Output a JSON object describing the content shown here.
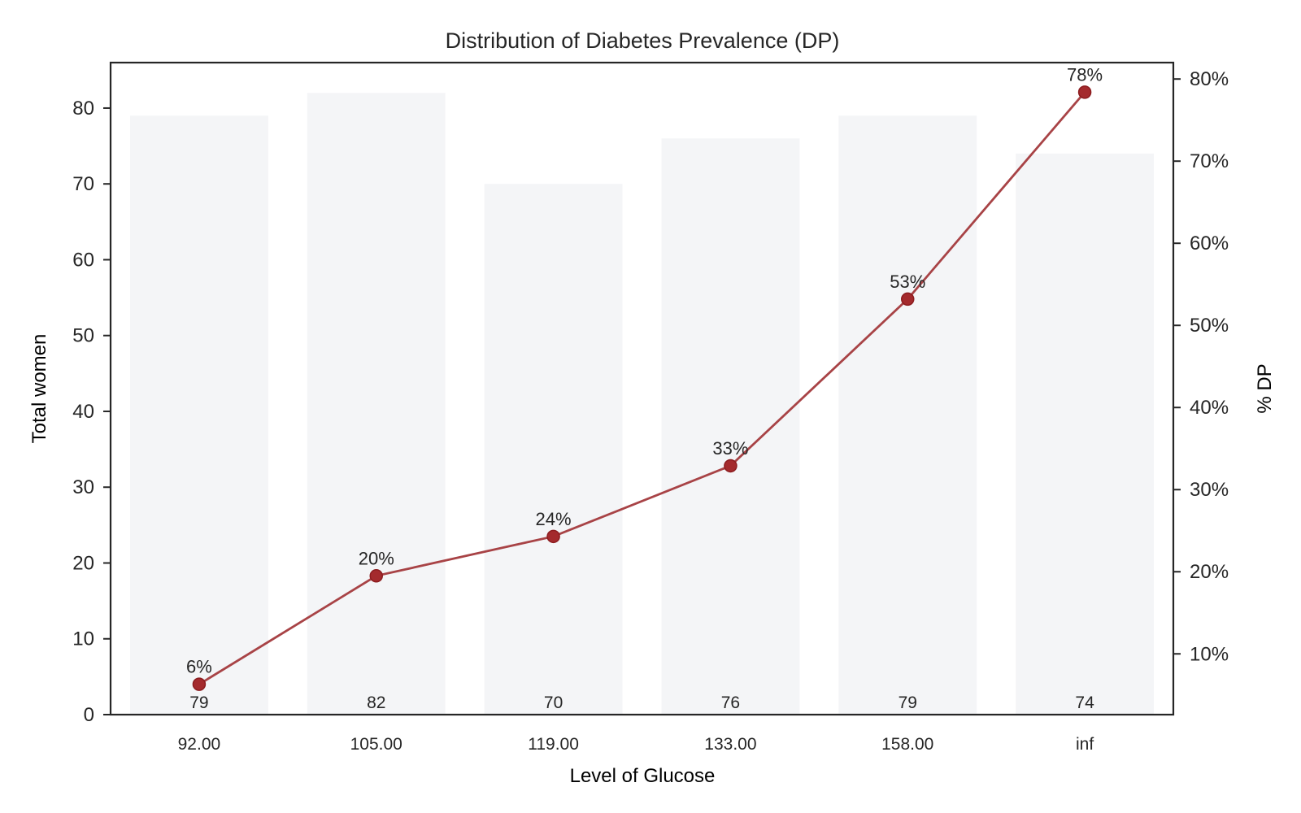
{
  "chart_data": {
    "type": "bar",
    "title": "Distribution of Diabetes Prevalence (DP)",
    "xlabel": "Level of Glucose",
    "ylabel": "Total women",
    "y2label": "% DP",
    "categories": [
      "92.00",
      "105.00",
      "119.00",
      "133.00",
      "158.00",
      "inf"
    ],
    "series": [
      {
        "type": "bar",
        "axis": "left",
        "values": [
          79,
          82,
          70,
          76,
          79,
          74
        ],
        "labels": [
          "79",
          "82",
          "70",
          "76",
          "79",
          "74"
        ],
        "color": "#f4f5f7"
      },
      {
        "type": "line",
        "axis": "right",
        "values": [
          0.063,
          0.195,
          0.243,
          0.329,
          0.532,
          0.784
        ],
        "labels": [
          "6%",
          "20%",
          "24%",
          "33%",
          "53%",
          "78%"
        ],
        "color": "#a84346"
      }
    ],
    "ylim": [
      0,
      86
    ],
    "yticks": [
      0,
      10,
      20,
      30,
      40,
      50,
      60,
      70,
      80
    ],
    "ytick_labels": [
      "0",
      "10",
      "20",
      "30",
      "40",
      "50",
      "60",
      "70",
      "80"
    ],
    "y2lim": [
      0.026,
      0.82
    ],
    "y2ticks": [
      0.1,
      0.2,
      0.3,
      0.4,
      0.5,
      0.6,
      0.7,
      0.8
    ],
    "y2tick_labels": [
      "10%",
      "20%",
      "30%",
      "40%",
      "50%",
      "60%",
      "70%",
      "80%"
    ],
    "grid": false,
    "legend": "none"
  }
}
